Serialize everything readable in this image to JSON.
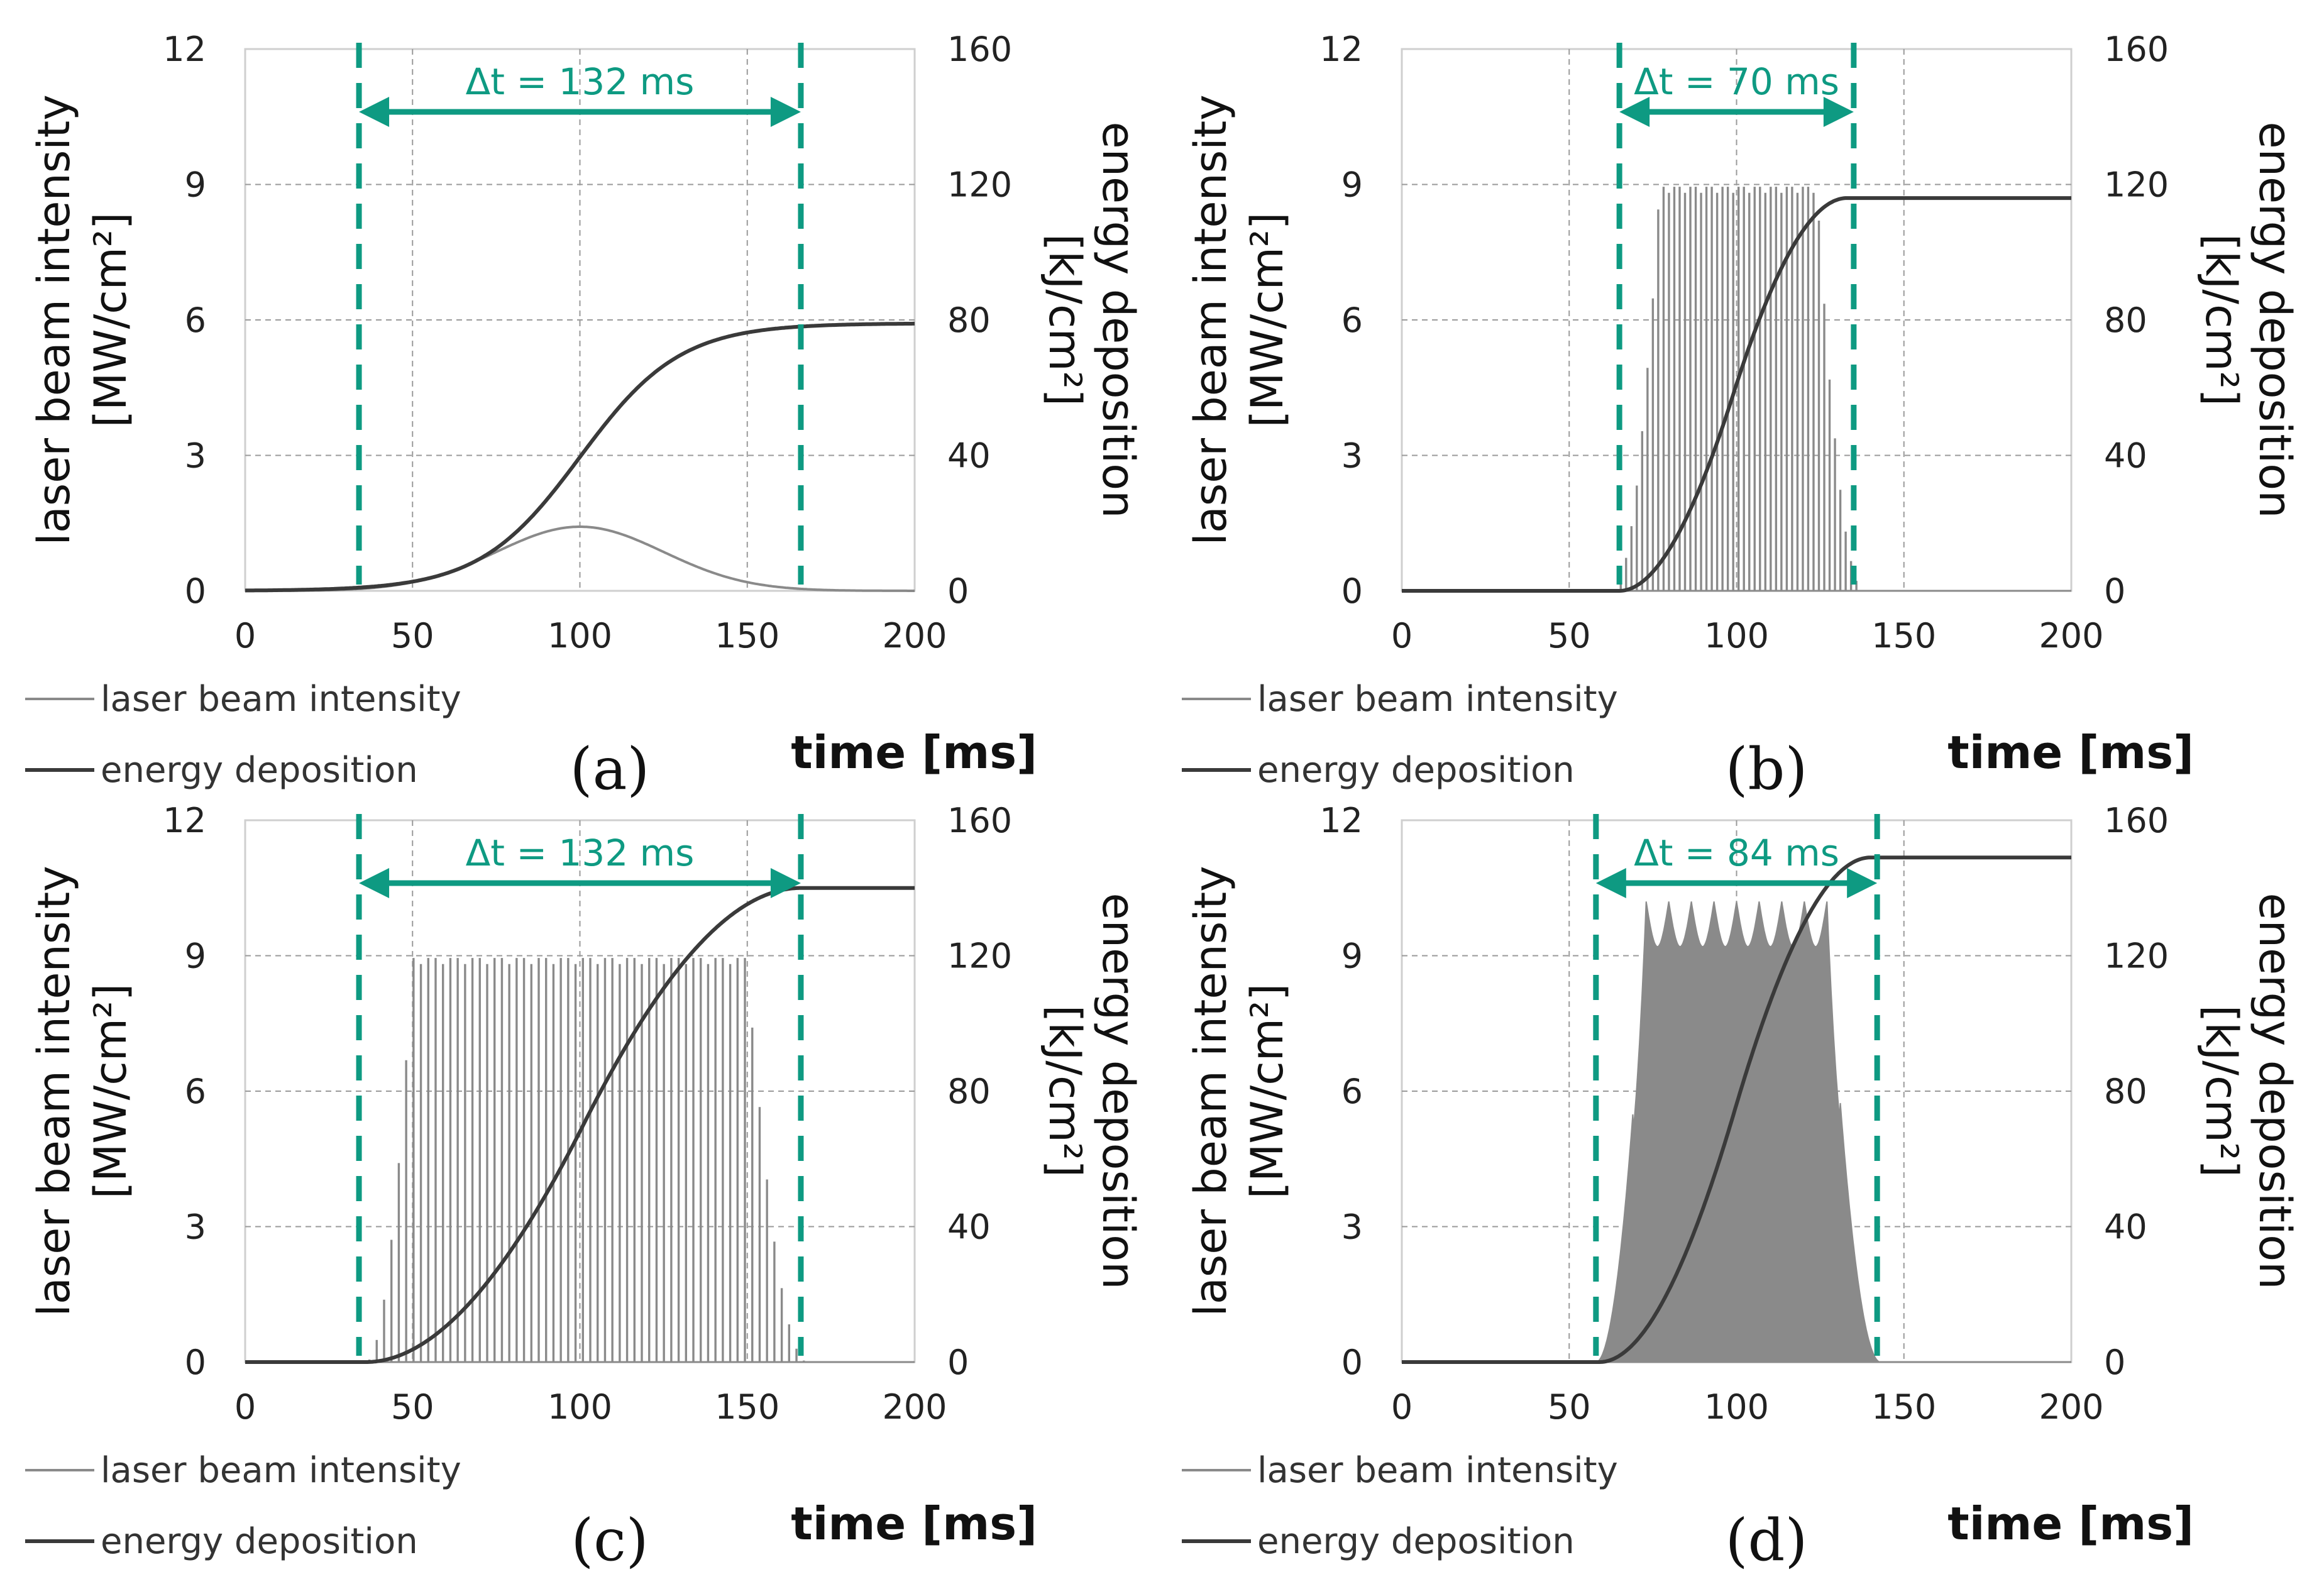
{
  "colors": {
    "intensity": "#8a8a8a",
    "energy": "#3a3a3a",
    "accent": "#0e9a82",
    "grid": "#9a9a9a",
    "frame": "#cfcfcf"
  },
  "chart_data": [
    {
      "type": "line",
      "panel_label": "(a)",
      "xlabel": "time [ms]",
      "ylabel_left": "laser beam intensity",
      "ylabel_left_unit": "[MW/cm²]",
      "ylabel_right": "energy deposition",
      "ylabel_right_unit": "[kJ/cm²]",
      "xlim": [
        0,
        200
      ],
      "ylim_left": [
        0,
        12
      ],
      "ylim_right": [
        0,
        160
      ],
      "x_ticks": [
        "0",
        "50",
        "100",
        "150",
        "200"
      ],
      "y_left_ticks": [
        "0",
        "3",
        "6",
        "9",
        "12"
      ],
      "y_right_ticks": [
        "0",
        "40",
        "80",
        "120",
        "160"
      ],
      "legend": [
        "laser beam intensity",
        "energy deposition"
      ],
      "delta_t": {
        "label": "Δt = 132 ms",
        "start": 34,
        "end": 166
      },
      "series": [
        {
          "name": "laser beam intensity",
          "axis": "left",
          "shape": "gaussian",
          "peak": 1.42,
          "center": 100,
          "sigma": 25
        },
        {
          "name": "energy deposition",
          "axis": "right",
          "shape": "sigmoid",
          "final": 79,
          "center": 100,
          "width": 15
        }
      ]
    },
    {
      "type": "line",
      "panel_label": "(b)",
      "xlabel": "time [ms]",
      "ylabel_left": "laser beam intensity",
      "ylabel_left_unit": "[MW/cm²]",
      "ylabel_right": "energy deposition",
      "ylabel_right_unit": "[kJ/cm²]",
      "xlim": [
        0,
        200
      ],
      "ylim_left": [
        0,
        12
      ],
      "ylim_right": [
        0,
        160
      ],
      "x_ticks": [
        "0",
        "50",
        "100",
        "150",
        "200"
      ],
      "y_left_ticks": [
        "0",
        "3",
        "6",
        "9",
        "12"
      ],
      "y_right_ticks": [
        "0",
        "40",
        "80",
        "120",
        "160"
      ],
      "legend": [
        "laser beam intensity",
        "energy deposition"
      ],
      "delta_t": {
        "label": "Δt = 70 ms",
        "start": 65,
        "end": 135
      },
      "series": [
        {
          "name": "laser beam intensity",
          "axis": "left",
          "shape": "pulse_train",
          "peak": 8.95,
          "start": 63,
          "end": 138,
          "plateau_start": 77,
          "plateau_end": 124,
          "spacing": 1.6
        },
        {
          "name": "energy deposition",
          "axis": "right",
          "shape": "ramp",
          "start": 65,
          "end": 133,
          "final": 116
        }
      ]
    },
    {
      "type": "line",
      "panel_label": "(c)",
      "xlabel": "time [ms]",
      "ylabel_left": "laser beam intensity",
      "ylabel_left_unit": "[MW/cm²]",
      "ylabel_right": "energy deposition",
      "ylabel_right_unit": "[kJ/cm²]",
      "xlim": [
        0,
        200
      ],
      "ylim_left": [
        0,
        12
      ],
      "ylim_right": [
        0,
        160
      ],
      "x_ticks": [
        "0",
        "50",
        "100",
        "150",
        "200"
      ],
      "y_left_ticks": [
        "0",
        "3",
        "6",
        "9",
        "12"
      ],
      "y_right_ticks": [
        "0",
        "40",
        "80",
        "120",
        "160"
      ],
      "legend": [
        "laser beam intensity",
        "energy deposition"
      ],
      "delta_t": {
        "label": "Δt = 132 ms",
        "start": 34,
        "end": 166
      },
      "series": [
        {
          "name": "laser beam intensity",
          "axis": "left",
          "shape": "pulse_train",
          "peak": 8.95,
          "start": 36,
          "end": 168,
          "plateau_start": 50,
          "plateau_end": 150,
          "spacing": 2.2
        },
        {
          "name": "energy deposition",
          "axis": "right",
          "shape": "ramp",
          "start": 36,
          "end": 166,
          "final": 140
        }
      ]
    },
    {
      "type": "line",
      "panel_label": "(d)",
      "xlabel": "time [ms]",
      "ylabel_left": "laser beam intensity",
      "ylabel_left_unit": "[MW/cm²]",
      "ylabel_right": "energy deposition",
      "ylabel_right_unit": "[kJ/cm²]",
      "xlim": [
        0,
        200
      ],
      "ylim_left": [
        0,
        12
      ],
      "ylim_right": [
        0,
        160
      ],
      "x_ticks": [
        "0",
        "50",
        "100",
        "150",
        "200"
      ],
      "y_left_ticks": [
        "0",
        "3",
        "6",
        "9",
        "12"
      ],
      "y_right_ticks": [
        "0",
        "40",
        "80",
        "120",
        "160"
      ],
      "legend": [
        "laser beam intensity",
        "energy deposition"
      ],
      "delta_t": {
        "label": "Δt = 84 ms",
        "start": 58,
        "end": 142
      },
      "series": [
        {
          "name": "laser beam intensity",
          "axis": "left",
          "shape": "filled_envelope",
          "peak": 10.2,
          "start": 58,
          "end": 143,
          "plateau_start": 73,
          "plateau_end": 127,
          "ripple_count": 8,
          "ripple_depth": 1.0
        },
        {
          "name": "energy deposition",
          "axis": "right",
          "shape": "ramp",
          "start": 59,
          "end": 140,
          "final": 149
        }
      ]
    }
  ]
}
